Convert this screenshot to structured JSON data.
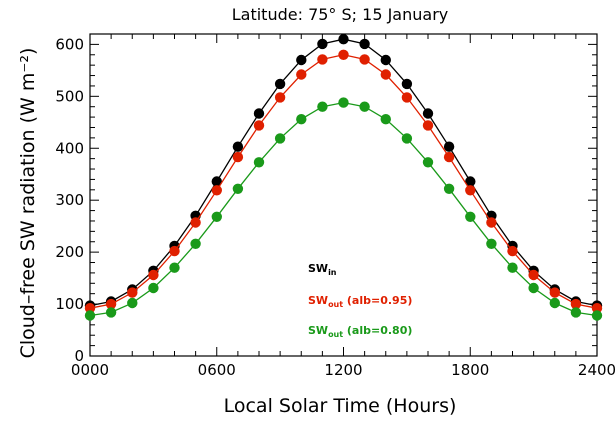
{
  "chart_data": {
    "type": "line",
    "title": "Latitude: 75° S; 15 January",
    "xlabel": "Local Solar Time (Hours)",
    "ylabel": "Cloud–free SW radiation (W m⁻²)",
    "xlim": [
      0,
      24
    ],
    "ylim": [
      0,
      620
    ],
    "xticks": [
      {
        "value": 0,
        "label": "0000"
      },
      {
        "value": 6,
        "label": "0600"
      },
      {
        "value": 12,
        "label": "1200"
      },
      {
        "value": 18,
        "label": "1800"
      },
      {
        "value": 24,
        "label": "2400"
      }
    ],
    "yticks": [
      0,
      100,
      200,
      300,
      400,
      500,
      600
    ],
    "grid": false,
    "legend_position": "center-right",
    "x": [
      0,
      1,
      2,
      3,
      4,
      5,
      6,
      7,
      8,
      9,
      10,
      11,
      12,
      13,
      14,
      15,
      16,
      17,
      18,
      19,
      20,
      21,
      22,
      23,
      24
    ],
    "series": [
      {
        "name": "SW",
        "subscript": "in",
        "suffix": "",
        "color": "#000000",
        "values": [
          97,
          105,
          128,
          164,
          212,
          270,
          336,
          403,
          467,
          524,
          570,
          601,
          610,
          601,
          570,
          524,
          467,
          403,
          336,
          270,
          212,
          164,
          128,
          105,
          97
        ]
      },
      {
        "name": "SW",
        "subscript": "out",
        "suffix": " (alb=0.95)",
        "color": "#e02000",
        "values": [
          92,
          100,
          122,
          156,
          202,
          257,
          319,
          383,
          444,
          498,
          542,
          571,
          580,
          571,
          542,
          498,
          444,
          383,
          319,
          257,
          202,
          156,
          122,
          100,
          92
        ]
      },
      {
        "name": "SW",
        "subscript": "out",
        "suffix": " (alb=0.80)",
        "color": "#1a9a1a",
        "values": [
          78,
          84,
          102,
          131,
          170,
          216,
          268,
          322,
          373,
          419,
          456,
          480,
          488,
          480,
          456,
          419,
          373,
          322,
          268,
          216,
          170,
          131,
          102,
          84,
          78
        ]
      }
    ]
  }
}
